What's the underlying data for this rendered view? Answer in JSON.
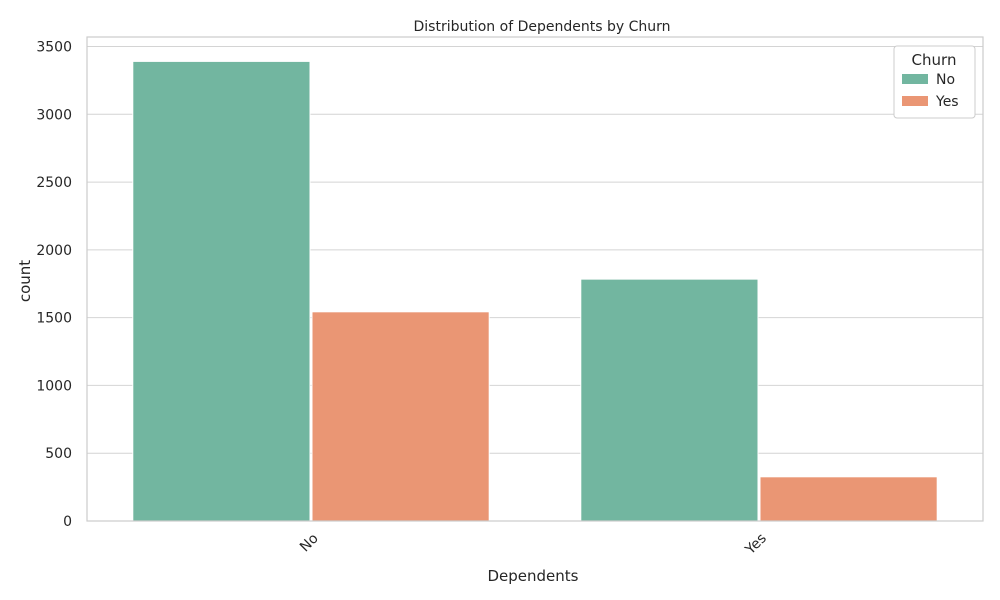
{
  "chart_data": {
    "type": "bar",
    "title": "Distribution of Dependents by Churn",
    "xlabel": "Dependents",
    "ylabel": "count",
    "categories": [
      "No",
      "Yes"
    ],
    "series": [
      {
        "name": "No",
        "values": [
          3390,
          1784
        ],
        "color": "#72b6a0"
      },
      {
        "name": "Yes",
        "values": [
          1543,
          326
        ],
        "color": "#ea9674"
      }
    ],
    "ylim": [
      0,
      3570
    ],
    "yticks": [
      0,
      500,
      1000,
      1500,
      2000,
      2500,
      3000,
      3500
    ],
    "grid": true,
    "legend": {
      "title": "Churn",
      "placement": "top-right"
    }
  }
}
